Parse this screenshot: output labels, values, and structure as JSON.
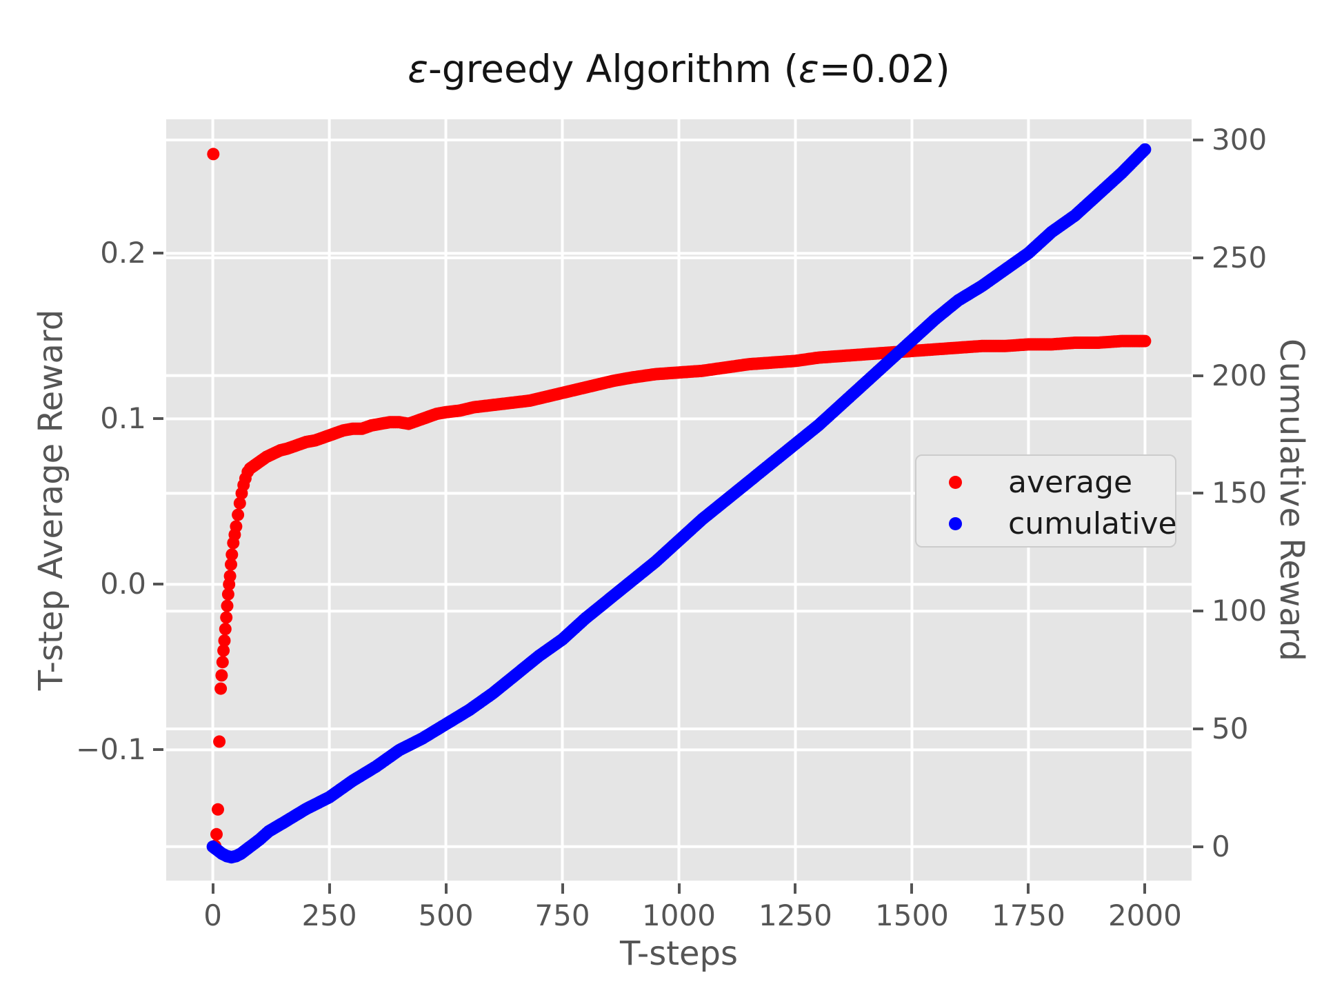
{
  "title": "ε-greedy Algorithm (ε=0.02)",
  "chart_data": {
    "type": "scatter",
    "title": "ε-greedy Algorithm (ε=0.02)",
    "xlabel": "T-steps",
    "ylabel_left": "T-step Average Reward",
    "ylabel_right": "Cumulative Reward",
    "grid": true,
    "background_color": "#e5e5e5",
    "gridline_color": "#ffffff",
    "tick_color": "#555555",
    "xlim": [
      -100,
      2100
    ],
    "ylim_left": [
      -0.179,
      0.281
    ],
    "ylim_right": [
      -14.4,
      308.8
    ],
    "x_ticks": [
      {
        "value": 0,
        "label": "0"
      },
      {
        "value": 250,
        "label": "250"
      },
      {
        "value": 500,
        "label": "500"
      },
      {
        "value": 750,
        "label": "750"
      },
      {
        "value": 1000,
        "label": "1000"
      },
      {
        "value": 1250,
        "label": "1250"
      },
      {
        "value": 1500,
        "label": "1500"
      },
      {
        "value": 1750,
        "label": "1750"
      },
      {
        "value": 2000,
        "label": "2000"
      }
    ],
    "y_ticks_left": [
      {
        "value": 0.2,
        "label": "0.2"
      },
      {
        "value": 0.1,
        "label": "0.1"
      },
      {
        "value": 0.0,
        "label": "0.0"
      },
      {
        "value": -0.1,
        "label": "−0.1"
      }
    ],
    "y_ticks_right": [
      {
        "value": 300,
        "label": "300"
      },
      {
        "value": 250,
        "label": "250"
      },
      {
        "value": 200,
        "label": "200"
      },
      {
        "value": 150,
        "label": "150"
      },
      {
        "value": 100,
        "label": "100"
      },
      {
        "value": 50,
        "label": "50"
      },
      {
        "value": 0,
        "label": "0"
      }
    ],
    "legend": {
      "position": "center-right",
      "items": [
        {
          "label": "average",
          "color": "#ff0000"
        },
        {
          "label": "cumulative",
          "color": "#0000ff"
        }
      ]
    },
    "series": [
      {
        "name": "average",
        "axis": "left",
        "color": "#ff0000",
        "marker_radius": 9,
        "points": [
          [
            1,
            0.26
          ],
          [
            5,
            -0.158
          ],
          [
            8,
            -0.151
          ],
          [
            11,
            -0.136
          ],
          [
            14,
            -0.095
          ],
          [
            17,
            -0.063
          ],
          [
            19,
            -0.055
          ],
          [
            21,
            -0.047
          ],
          [
            23,
            -0.04
          ],
          [
            25,
            -0.034
          ],
          [
            27,
            -0.027
          ],
          [
            29,
            -0.02
          ],
          [
            31,
            -0.013
          ],
          [
            33,
            -0.006
          ],
          [
            35,
            0.0
          ],
          [
            37,
            0.005
          ],
          [
            39,
            0.012
          ],
          [
            41,
            0.018
          ],
          [
            44,
            0.025
          ],
          [
            47,
            0.03
          ],
          [
            50,
            0.035
          ],
          [
            54,
            0.042
          ],
          [
            58,
            0.049
          ],
          [
            62,
            0.055
          ],
          [
            66,
            0.06
          ],
          [
            70,
            0.064
          ],
          [
            75,
            0.068
          ],
          [
            80,
            0.07
          ],
          [
            90,
            0.072
          ],
          [
            100,
            0.074
          ],
          [
            115,
            0.077
          ],
          [
            130,
            0.079
          ],
          [
            145,
            0.081
          ],
          [
            160,
            0.082
          ],
          [
            180,
            0.084
          ],
          [
            200,
            0.086
          ],
          [
            220,
            0.087
          ],
          [
            240,
            0.089
          ],
          [
            260,
            0.091
          ],
          [
            280,
            0.093
          ],
          [
            300,
            0.094
          ],
          [
            320,
            0.094
          ],
          [
            340,
            0.096
          ],
          [
            360,
            0.097
          ],
          [
            380,
            0.098
          ],
          [
            400,
            0.098
          ],
          [
            420,
            0.097
          ],
          [
            440,
            0.099
          ],
          [
            460,
            0.101
          ],
          [
            480,
            0.103
          ],
          [
            500,
            0.104
          ],
          [
            530,
            0.105
          ],
          [
            560,
            0.107
          ],
          [
            590,
            0.108
          ],
          [
            620,
            0.109
          ],
          [
            650,
            0.11
          ],
          [
            680,
            0.111
          ],
          [
            710,
            0.113
          ],
          [
            740,
            0.115
          ],
          [
            770,
            0.117
          ],
          [
            800,
            0.119
          ],
          [
            830,
            0.121
          ],
          [
            860,
            0.123
          ],
          [
            900,
            0.125
          ],
          [
            950,
            0.127
          ],
          [
            1000,
            0.128
          ],
          [
            1050,
            0.129
          ],
          [
            1100,
            0.131
          ],
          [
            1150,
            0.133
          ],
          [
            1200,
            0.134
          ],
          [
            1250,
            0.135
          ],
          [
            1300,
            0.137
          ],
          [
            1350,
            0.138
          ],
          [
            1400,
            0.139
          ],
          [
            1450,
            0.14
          ],
          [
            1500,
            0.141
          ],
          [
            1550,
            0.142
          ],
          [
            1600,
            0.143
          ],
          [
            1650,
            0.144
          ],
          [
            1700,
            0.144
          ],
          [
            1750,
            0.145
          ],
          [
            1800,
            0.145
          ],
          [
            1850,
            0.146
          ],
          [
            1900,
            0.146
          ],
          [
            1950,
            0.147
          ],
          [
            2000,
            0.147
          ]
        ]
      },
      {
        "name": "cumulative",
        "axis": "right",
        "color": "#0000ff",
        "marker_radius": 9,
        "points": [
          [
            0,
            0
          ],
          [
            10,
            -1.5
          ],
          [
            20,
            -3
          ],
          [
            30,
            -4
          ],
          [
            40,
            -4.5
          ],
          [
            50,
            -4
          ],
          [
            60,
            -3
          ],
          [
            70,
            -1.5
          ],
          [
            80,
            0
          ],
          [
            100,
            3
          ],
          [
            120,
            6.5
          ],
          [
            150,
            10
          ],
          [
            200,
            16
          ],
          [
            250,
            21
          ],
          [
            300,
            28
          ],
          [
            350,
            34
          ],
          [
            400,
            41
          ],
          [
            450,
            46
          ],
          [
            500,
            52
          ],
          [
            550,
            58
          ],
          [
            600,
            65
          ],
          [
            650,
            73
          ],
          [
            700,
            81
          ],
          [
            750,
            88
          ],
          [
            800,
            97
          ],
          [
            850,
            105
          ],
          [
            900,
            113
          ],
          [
            950,
            121
          ],
          [
            1000,
            130
          ],
          [
            1050,
            139
          ],
          [
            1100,
            147
          ],
          [
            1150,
            155
          ],
          [
            1200,
            163
          ],
          [
            1250,
            171
          ],
          [
            1300,
            179
          ],
          [
            1350,
            188
          ],
          [
            1400,
            197
          ],
          [
            1450,
            206
          ],
          [
            1500,
            215
          ],
          [
            1550,
            224
          ],
          [
            1600,
            232
          ],
          [
            1650,
            238
          ],
          [
            1700,
            245
          ],
          [
            1750,
            252
          ],
          [
            1800,
            261
          ],
          [
            1850,
            268
          ],
          [
            1900,
            277
          ],
          [
            1950,
            286
          ],
          [
            2000,
            296
          ]
        ]
      }
    ]
  }
}
